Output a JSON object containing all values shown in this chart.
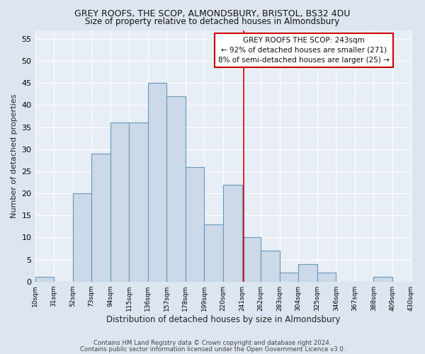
{
  "title1": "GREY ROOFS, THE SCOP, ALMONDSBURY, BRISTOL, BS32 4DU",
  "title2": "Size of property relative to detached houses in Almondsbury",
  "xlabel": "Distribution of detached houses by size in Almondsbury",
  "ylabel": "Number of detached properties",
  "bin_edges": [
    10,
    31,
    52,
    73,
    94,
    115,
    136,
    157,
    178,
    199,
    220,
    241,
    262,
    283,
    304,
    325,
    346,
    367,
    388,
    409,
    430
  ],
  "bar_heights": [
    1,
    0,
    20,
    29,
    36,
    36,
    45,
    42,
    26,
    13,
    22,
    10,
    7,
    2,
    4,
    2,
    0,
    0,
    1,
    0
  ],
  "bar_facecolor": "#ccd9e8",
  "bar_edgecolor": "#6699bb",
  "vline_x": 243,
  "vline_color": "#cc0000",
  "ylim": [
    0,
    57
  ],
  "yticks": [
    0,
    5,
    10,
    15,
    20,
    25,
    30,
    35,
    40,
    45,
    50,
    55
  ],
  "tick_labels": [
    "10sqm",
    "31sqm",
    "52sqm",
    "73sqm",
    "94sqm",
    "115sqm",
    "136sqm",
    "157sqm",
    "178sqm",
    "199sqm",
    "220sqm",
    "241sqm",
    "262sqm",
    "283sqm",
    "304sqm",
    "325sqm",
    "346sqm",
    "367sqm",
    "388sqm",
    "409sqm",
    "430sqm"
  ],
  "annotation_text": "GREY ROOFS THE SCOP: 243sqm\n← 92% of detached houses are smaller (271)\n8% of semi-detached houses are larger (25) →",
  "annotation_box_color": "#ffffff",
  "annotation_box_edgecolor": "#cc0000",
  "footer_text1": "Contains HM Land Registry data © Crown copyright and database right 2024.",
  "footer_text2": "Contains public sector information licensed under the Open Government Licence v3.0.",
  "bg_color": "#dde6f0",
  "plot_bg_color": "#e8eef5"
}
